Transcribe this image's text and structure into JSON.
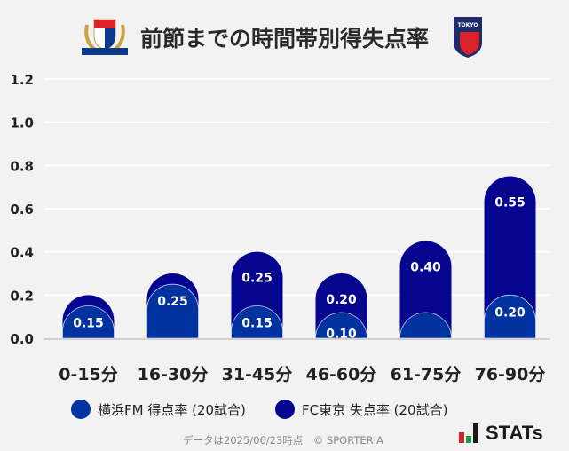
{
  "title": "前節までの時間帯別得失点率",
  "logos": {
    "left": "Yokohama F·Marinos",
    "right": "F C TOKYO"
  },
  "colors": {
    "fm": "#0033a0",
    "tokyo": "#05058f",
    "grid": "#ffffff",
    "text": "#222222"
  },
  "chart_data": {
    "type": "bar",
    "stacked": true,
    "categories": [
      "0-15分",
      "16-30分",
      "31-45分",
      "46-60分",
      "61-75分",
      "76-90分"
    ],
    "series": [
      {
        "name": "横浜FM 得点率 (20試合)",
        "values": [
          0.15,
          0.25,
          0.15,
          0.1,
          0.05,
          0.2
        ],
        "labels": [
          "0.15",
          "0.25",
          "0.15",
          "0.10",
          "",
          "0.20"
        ]
      },
      {
        "name": "FC東京 失点率 (20試合)",
        "values": [
          0.05,
          0.05,
          0.25,
          0.2,
          0.4,
          0.55
        ],
        "labels": [
          "",
          "",
          "0.25",
          "0.20",
          "0.40",
          "0.55"
        ]
      }
    ],
    "yticks": [
      "0.0",
      "0.2",
      "0.4",
      "0.6",
      "0.8",
      "1.0",
      "1.2"
    ],
    "ylim": [
      0,
      1.2
    ],
    "grid": true,
    "legend": "bottom"
  },
  "footer": "データは2025/06/23時点　© SPORTERIA",
  "brand": "STATs"
}
